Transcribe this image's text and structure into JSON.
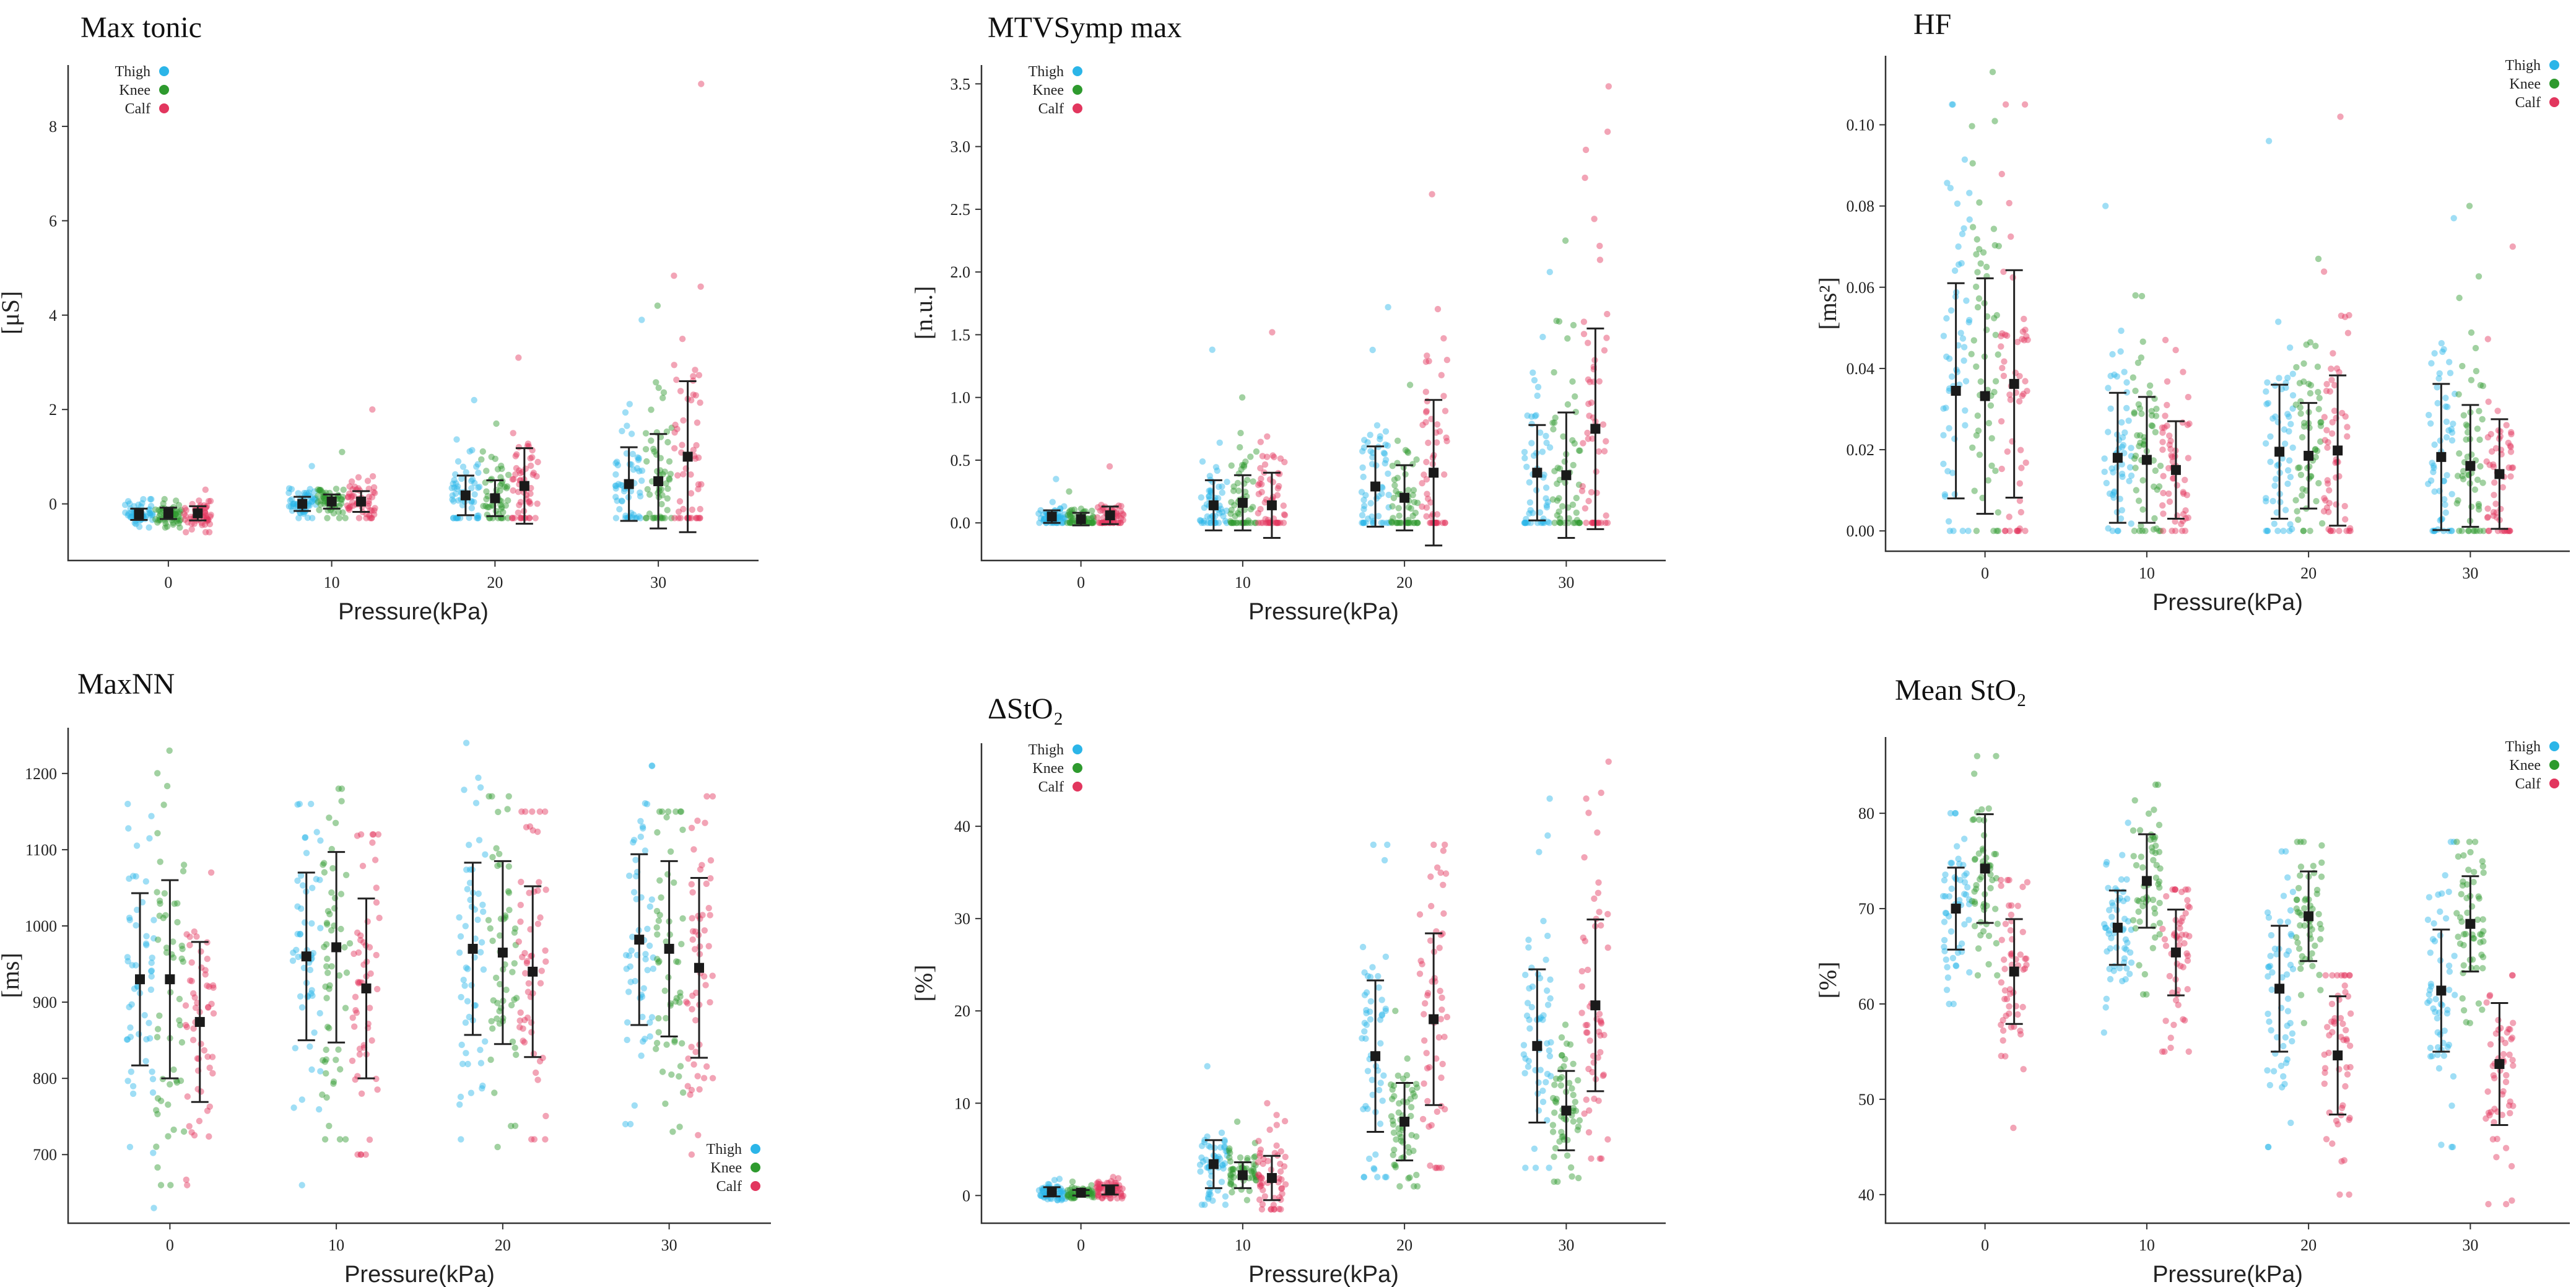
{
  "colors": {
    "Thigh": "#2BB5E8",
    "Knee": "#2E9A2E",
    "Calf": "#E2365E"
  },
  "chart_data": [
    {
      "type": "scatter",
      "title": "Max tonic",
      "xlabel": "Pressure(kPa)",
      "ylabel": "[μS]",
      "legend": "top-left",
      "ylim": [
        -1.2,
        9.3
      ],
      "yticks": [
        0,
        2,
        4,
        6,
        8
      ],
      "categories": [
        "0",
        "10",
        "20",
        "30"
      ],
      "series": [
        {
          "name": "Thigh",
          "mean": [
            -0.22,
            0.0,
            0.18,
            0.42
          ],
          "sd": [
            0.12,
            0.15,
            0.42,
            0.78
          ],
          "min": [
            -0.5,
            -0.3,
            -0.3,
            -0.3
          ],
          "max": [
            0.1,
            0.8,
            2.2,
            3.9
          ]
        },
        {
          "name": "Knee",
          "mean": [
            -0.2,
            0.05,
            0.12,
            0.48
          ],
          "sd": [
            0.12,
            0.15,
            0.38,
            1.0
          ],
          "min": [
            -0.5,
            -0.3,
            -0.3,
            -0.3
          ],
          "max": [
            0.1,
            1.1,
            1.7,
            4.2
          ]
        },
        {
          "name": "Calf",
          "mean": [
            -0.2,
            0.05,
            0.38,
            1.0
          ],
          "sd": [
            0.15,
            0.22,
            0.8,
            1.6
          ],
          "min": [
            -0.6,
            -0.3,
            -0.3,
            -0.3
          ],
          "max": [
            0.3,
            2.0,
            3.1,
            8.9
          ]
        }
      ]
    },
    {
      "type": "scatter",
      "title": "MTVSymp max",
      "xlabel": "Pressure(kPa)",
      "ylabel": "[n.u.]",
      "legend": "top-left",
      "ylim": [
        -0.3,
        3.65
      ],
      "yticks": [
        0.0,
        0.5,
        1.0,
        1.5,
        2.0,
        2.5,
        3.0,
        3.5
      ],
      "categories": [
        "0",
        "10",
        "20",
        "30"
      ],
      "series": [
        {
          "name": "Thigh",
          "mean": [
            0.05,
            0.14,
            0.29,
            0.4
          ],
          "sd": [
            0.05,
            0.2,
            0.32,
            0.38
          ],
          "min": [
            0,
            0,
            0,
            0
          ],
          "max": [
            0.35,
            1.38,
            1.72,
            2.0
          ]
        },
        {
          "name": "Knee",
          "mean": [
            0.03,
            0.16,
            0.2,
            0.38
          ],
          "sd": [
            0.05,
            0.22,
            0.26,
            0.5
          ],
          "min": [
            0,
            0,
            0,
            0
          ],
          "max": [
            0.25,
            1.0,
            1.1,
            2.25
          ]
        },
        {
          "name": "Calf",
          "mean": [
            0.06,
            0.14,
            0.4,
            0.75
          ],
          "sd": [
            0.07,
            0.26,
            0.58,
            0.8
          ],
          "min": [
            0,
            0,
            0,
            0
          ],
          "max": [
            0.45,
            1.52,
            2.62,
            3.48
          ]
        }
      ]
    },
    {
      "type": "scatter",
      "title": "HF",
      "xlabel": "Pressure(kPa)",
      "ylabel": "[ms²]",
      "legend": "top-right",
      "ylim": [
        -0.005,
        0.117
      ],
      "yticks": [
        0.0,
        0.02,
        0.04,
        0.06,
        0.08,
        0.1
      ],
      "categories": [
        "0",
        "10",
        "20",
        "30"
      ],
      "series": [
        {
          "name": "Thigh",
          "mean": [
            0.0345,
            0.018,
            0.0195,
            0.0182
          ],
          "sd": [
            0.0265,
            0.016,
            0.0165,
            0.018
          ],
          "min": [
            0,
            0,
            0,
            0
          ],
          "max": [
            0.105,
            0.08,
            0.096,
            0.077
          ]
        },
        {
          "name": "Knee",
          "mean": [
            0.0332,
            0.0175,
            0.0185,
            0.016
          ],
          "sd": [
            0.029,
            0.0155,
            0.013,
            0.015
          ],
          "min": [
            0,
            0,
            0,
            0
          ],
          "max": [
            0.113,
            0.058,
            0.067,
            0.08
          ]
        },
        {
          "name": "Calf",
          "mean": [
            0.0362,
            0.015,
            0.0198,
            0.014
          ],
          "sd": [
            0.028,
            0.012,
            0.0185,
            0.0135
          ],
          "min": [
            0,
            0,
            0,
            0
          ],
          "max": [
            0.105,
            0.047,
            0.102,
            0.07
          ]
        }
      ]
    },
    {
      "type": "scatter",
      "title": "MaxNN",
      "xlabel": "Pressure(kPa)",
      "ylabel": "[ms]",
      "legend": "bottom-right",
      "ylim": [
        610,
        1260
      ],
      "yticks": [
        700,
        800,
        900,
        1000,
        1100,
        1200
      ],
      "categories": [
        "0",
        "10",
        "20",
        "30"
      ],
      "series": [
        {
          "name": "Thigh",
          "mean": [
            930,
            960,
            970,
            982
          ],
          "sd": [
            113,
            110,
            113,
            112
          ],
          "min": [
            630,
            660,
            720,
            740
          ],
          "max": [
            1160,
            1160,
            1240,
            1210
          ]
        },
        {
          "name": "Knee",
          "mean": [
            930,
            972,
            965,
            970
          ],
          "sd": [
            130,
            125,
            120,
            115
          ],
          "min": [
            660,
            720,
            710,
            730
          ],
          "max": [
            1230,
            1180,
            1170,
            1150
          ]
        },
        {
          "name": "Calf",
          "mean": [
            874,
            918,
            940,
            945
          ],
          "sd": [
            105,
            118,
            112,
            118
          ],
          "min": [
            660,
            700,
            720,
            700
          ],
          "max": [
            1070,
            1120,
            1150,
            1170
          ]
        }
      ]
    },
    {
      "type": "scatter",
      "title": "ΔStO₂",
      "xlabel": "Pressure(kPa)",
      "ylabel": "[%]",
      "legend": "top-left",
      "ylim": [
        -3,
        49
      ],
      "yticks": [
        0,
        10,
        20,
        30,
        40
      ],
      "categories": [
        "0",
        "10",
        "20",
        "30"
      ],
      "series": [
        {
          "name": "Thigh",
          "mean": [
            0.4,
            3.4,
            15.1,
            16.2
          ],
          "sd": [
            0.5,
            2.6,
            8.2,
            8.3
          ],
          "min": [
            -0.5,
            -1,
            2,
            3
          ],
          "max": [
            1.8,
            14,
            38,
            43
          ]
        },
        {
          "name": "Knee",
          "mean": [
            0.3,
            2.2,
            8.0,
            9.2
          ],
          "sd": [
            0.3,
            1.4,
            4.2,
            4.3
          ],
          "min": [
            -0.3,
            -0.5,
            1,
            1.5
          ],
          "max": [
            1.5,
            8,
            20,
            18.5
          ]
        },
        {
          "name": "Calf",
          "mean": [
            0.6,
            1.9,
            19.1,
            20.6
          ],
          "sd": [
            0.5,
            2.4,
            9.3,
            9.3
          ],
          "min": [
            -0.3,
            -1.5,
            3,
            4
          ],
          "max": [
            2.0,
            10,
            38,
            47
          ]
        }
      ]
    },
    {
      "type": "scatter",
      "title": "Mean StO₂",
      "xlabel": "Pressure(kPa)",
      "ylabel": "[%]",
      "legend": "top-right",
      "ylim": [
        37,
        88
      ],
      "yticks": [
        40,
        50,
        60,
        70,
        80
      ],
      "categories": [
        "0",
        "10",
        "20",
        "30"
      ],
      "series": [
        {
          "name": "Thigh",
          "mean": [
            70.0,
            68.0,
            61.6,
            61.4
          ],
          "sd": [
            4.3,
            3.9,
            6.6,
            6.4
          ],
          "min": [
            60,
            57,
            45,
            45
          ],
          "max": [
            80,
            79,
            76,
            77
          ]
        },
        {
          "name": "Knee",
          "mean": [
            74.2,
            72.9,
            69.2,
            68.4
          ],
          "sd": [
            5.7,
            4.9,
            4.7,
            5.0
          ],
          "min": [
            63,
            61,
            58,
            58
          ],
          "max": [
            86,
            83,
            77,
            77
          ]
        },
        {
          "name": "Calf",
          "mean": [
            63.4,
            65.4,
            54.6,
            53.7
          ],
          "sd": [
            5.5,
            4.5,
            6.2,
            6.4
          ],
          "min": [
            47,
            55,
            40,
            39
          ],
          "max": [
            73,
            72,
            63,
            63
          ]
        }
      ]
    }
  ]
}
